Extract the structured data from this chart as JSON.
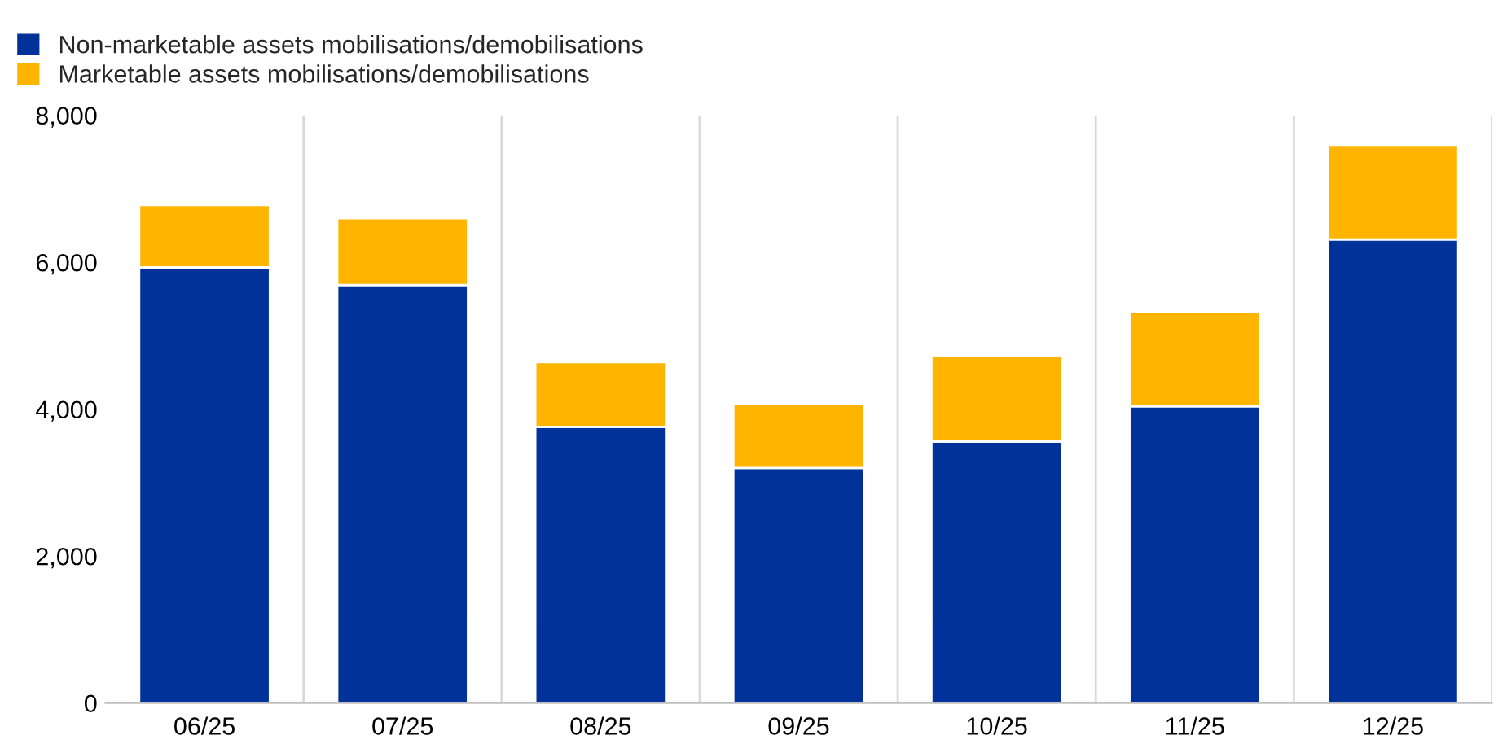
{
  "chart_data": {
    "type": "bar",
    "stacked": true,
    "categories": [
      "06/25",
      "07/25",
      "08/25",
      "09/25",
      "10/25",
      "11/25",
      "12/25"
    ],
    "series": [
      {
        "name": "Non-marketable assets mobilisations/demobilisations",
        "color": "#003299",
        "values": [
          5930,
          5690,
          3760,
          3200,
          3560,
          4040,
          6310
        ]
      },
      {
        "name": "Marketable assets mobilisations/demobilisations",
        "color": "#ffb400",
        "values": [
          850,
          910,
          880,
          870,
          1170,
          1290,
          1290
        ]
      }
    ],
    "ylim": [
      0,
      8000
    ],
    "yticks": [
      {
        "value": 0,
        "label": "0"
      },
      {
        "value": 2000,
        "label": "2,000"
      },
      {
        "value": 4000,
        "label": "4,000"
      },
      {
        "value": 6000,
        "label": "6,000"
      },
      {
        "value": 8000,
        "label": "8,000"
      }
    ],
    "grid": "x",
    "legend": "top left"
  }
}
